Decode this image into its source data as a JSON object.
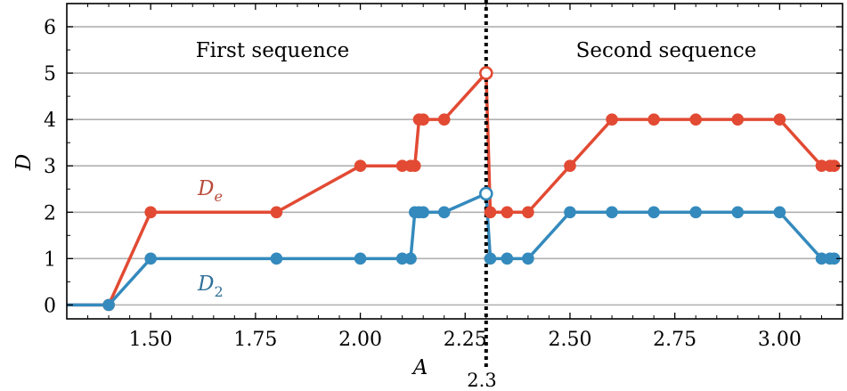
{
  "chart_data": {
    "type": "line",
    "xlabel": "A",
    "ylabel": "D",
    "xlim": [
      1.3,
      3.15
    ],
    "ylim": [
      -0.3,
      6.5
    ],
    "x_ticks": [
      "1.50",
      "1.75",
      "2.00",
      "2.25",
      "2.50",
      "2.75",
      "3.00"
    ],
    "x_tick_values": [
      1.5,
      1.75,
      2.0,
      2.25,
      2.5,
      2.75,
      3.0
    ],
    "y_ticks": [
      "0",
      "1",
      "2",
      "3",
      "4",
      "5",
      "6"
    ],
    "y_tick_values": [
      0,
      1,
      2,
      3,
      4,
      5,
      6
    ],
    "grid": "horizontal",
    "vline": {
      "x": 2.3,
      "label": "2.3"
    },
    "annotations": {
      "first_sequence": "First sequence",
      "second_sequence": "Second sequence"
    },
    "series": [
      {
        "name": "De",
        "label_main": "D",
        "label_sub": "e",
        "color": "#e24a33",
        "x": [
          1.3,
          1.4,
          1.5,
          1.8,
          2.0,
          2.1,
          2.12,
          2.13,
          2.14,
          2.15,
          2.2,
          2.3,
          2.31,
          2.35,
          2.4,
          2.5,
          2.6,
          2.7,
          2.8,
          2.9,
          3.0,
          3.1,
          3.12,
          3.13
        ],
        "y": [
          0,
          0,
          2,
          2,
          3,
          3,
          3,
          3,
          4,
          4,
          4,
          5,
          2,
          2,
          2,
          3,
          4,
          4,
          4,
          4,
          4,
          3,
          3,
          3
        ],
        "hollow_x": [
          2.3
        ]
      },
      {
        "name": "D2",
        "label_main": "D",
        "label_sub": "2",
        "color": "#348abd",
        "x": [
          1.3,
          1.4,
          1.5,
          1.8,
          2.0,
          2.1,
          2.12,
          2.13,
          2.14,
          2.15,
          2.2,
          2.3,
          2.31,
          2.35,
          2.4,
          2.5,
          2.6,
          2.7,
          2.8,
          2.9,
          3.0,
          3.1,
          3.12,
          3.13
        ],
        "y": [
          0,
          0,
          1,
          1,
          1,
          1,
          1,
          2,
          2,
          2,
          2,
          2.4,
          1,
          1,
          1,
          2,
          2,
          2,
          2,
          2,
          2,
          1,
          1,
          1
        ],
        "hollow_x": [
          2.3
        ]
      }
    ]
  }
}
